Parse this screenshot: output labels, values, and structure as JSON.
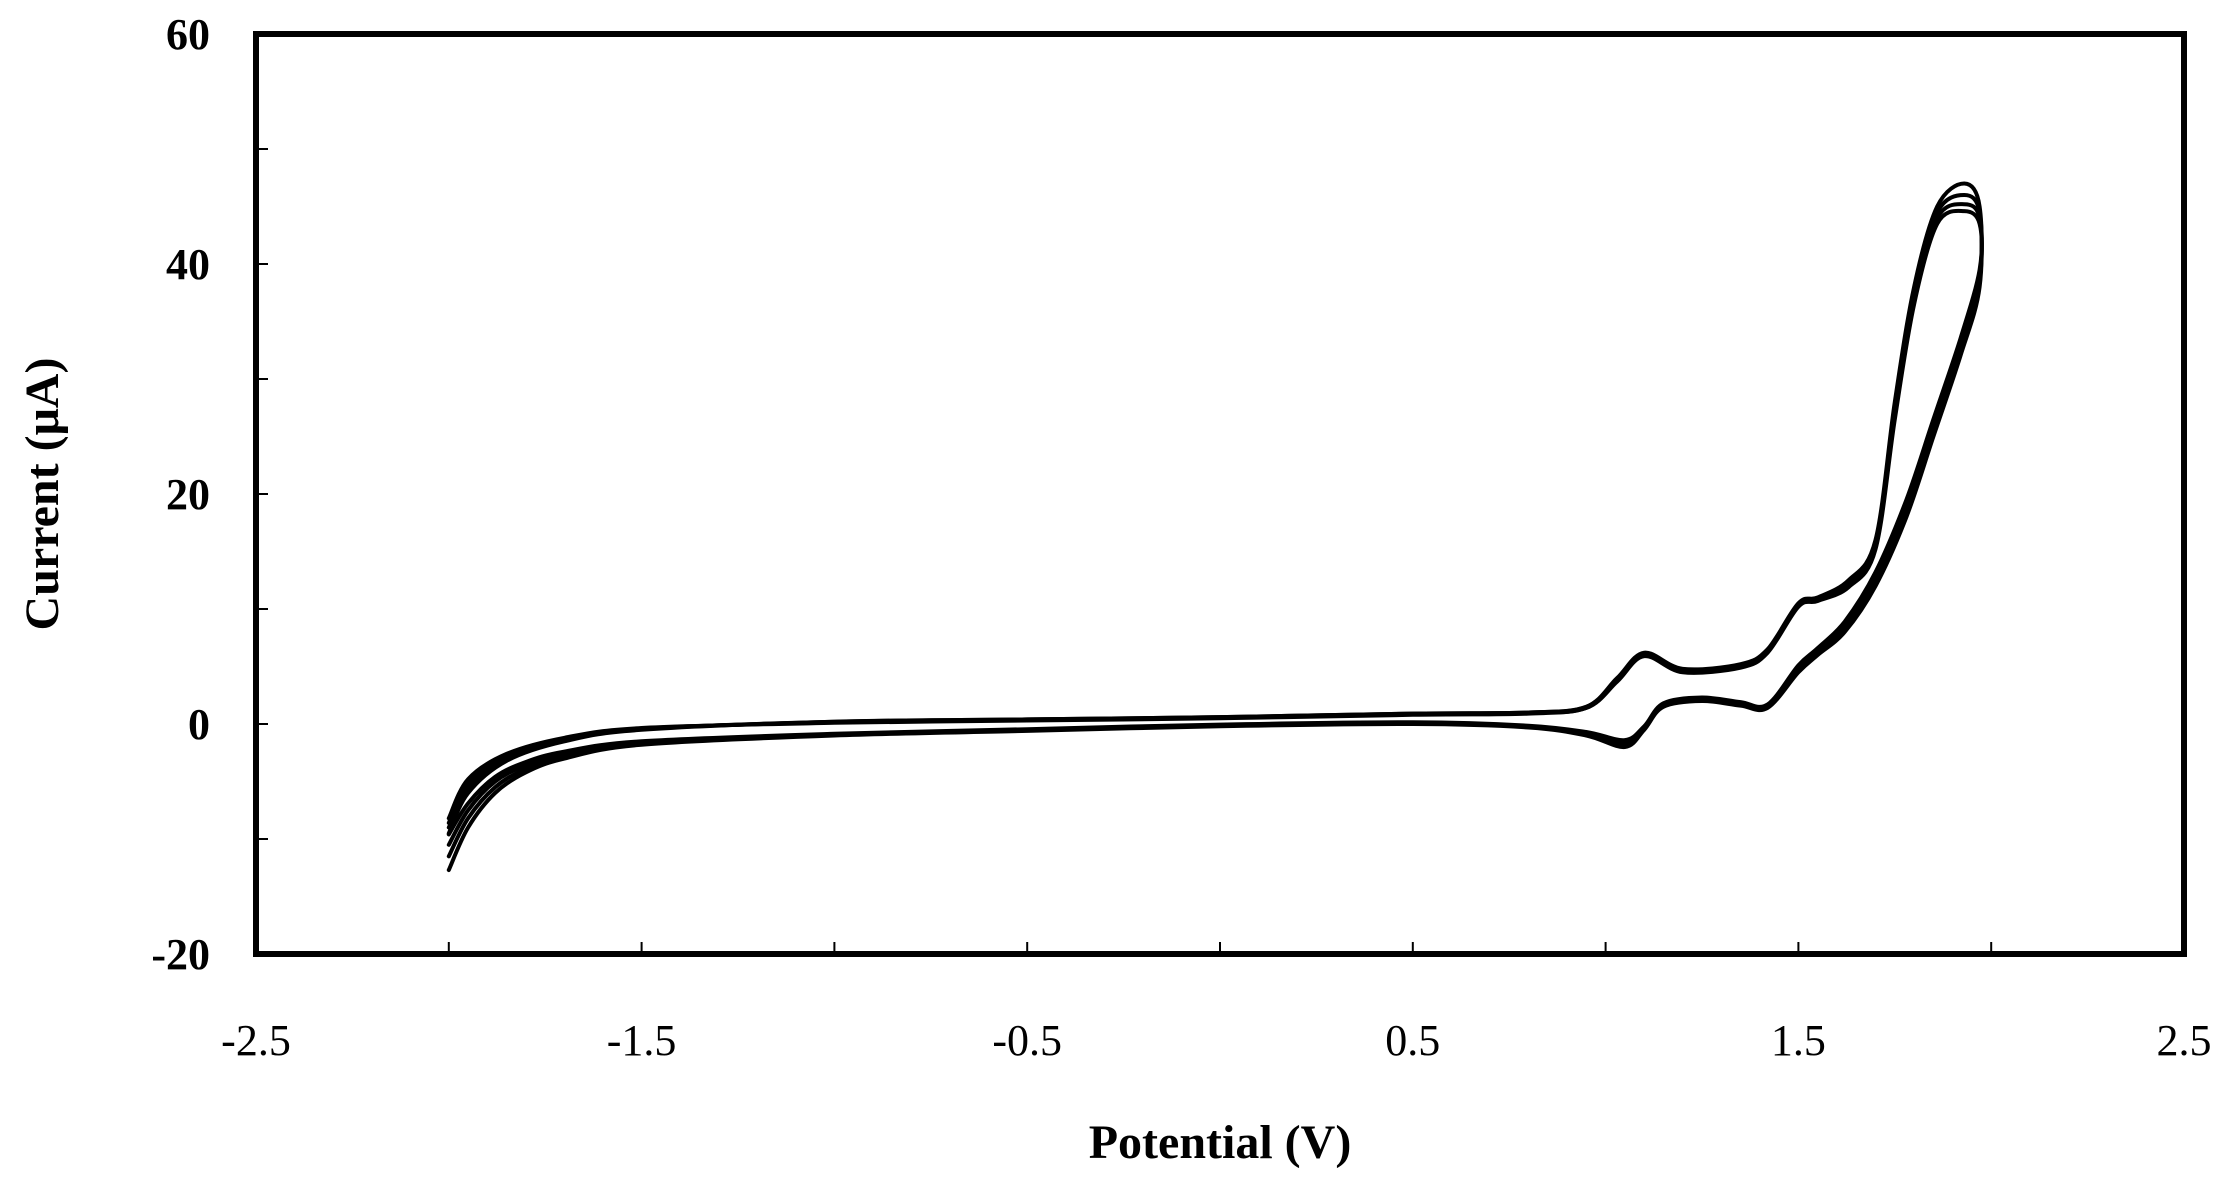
{
  "chart_data": {
    "type": "line",
    "title": "",
    "xlabel": "Potential (V)",
    "ylabel": "Current (μA)",
    "xlim": [
      -2.5,
      2.5
    ],
    "ylim": [
      -20,
      60
    ],
    "xticks": [
      "-2.5",
      "-1.5",
      "-0.5",
      "0.5",
      "1.5",
      "2.5"
    ],
    "xtick_values": [
      -2.5,
      -2.0,
      -1.5,
      -1.0,
      -0.5,
      0.0,
      0.5,
      1.0,
      1.5,
      2.0,
      2.5
    ],
    "xtick_labels": [
      "-2.5",
      "",
      "-1.5",
      "",
      "-0.5",
      "",
      "0.5",
      "",
      "1.5",
      "",
      "2.5"
    ],
    "ytick_values": [
      -20,
      -10,
      0,
      10,
      20,
      30,
      40,
      50,
      60
    ],
    "ytick_labels": [
      "-20",
      "",
      "0",
      "",
      "20",
      "",
      "40",
      "",
      "60"
    ],
    "grid": false,
    "legend": "none",
    "color": "#000000",
    "series": [
      {
        "x": [
          -2.0,
          -1.95,
          -1.88,
          -1.8,
          -1.7,
          -1.5,
          -1.0,
          -0.5,
          0.0,
          0.5,
          0.8,
          0.95,
          1.05,
          1.1,
          1.15,
          1.25,
          1.35,
          1.42,
          1.5,
          1.55,
          1.62,
          1.7,
          1.78,
          1.85,
          1.92,
          1.97,
          1.97,
          1.93,
          1.86,
          1.8,
          1.75,
          1.7,
          1.63,
          1.55,
          1.5,
          1.42,
          1.35,
          1.2,
          1.1,
          1.03,
          0.95,
          0.8,
          0.5,
          0.0,
          -0.5,
          -1.0,
          -1.5,
          -1.7,
          -1.85,
          -1.95,
          -2.0
        ],
        "y": [
          -12.7,
          -9.0,
          -6.0,
          -4.2,
          -3.0,
          -1.8,
          -1.0,
          -0.6,
          -0.2,
          0.0,
          -0.3,
          -1.0,
          -2.0,
          -0.5,
          1.5,
          2.0,
          1.6,
          1.4,
          4.5,
          6.0,
          8.0,
          12.0,
          18.0,
          25.0,
          32.0,
          38.0,
          45.0,
          47.0,
          45.0,
          38.0,
          28.0,
          16.0,
          12.5,
          11.0,
          10.5,
          6.5,
          5.2,
          4.8,
          6.2,
          4.0,
          1.5,
          1.0,
          0.9,
          0.6,
          0.4,
          0.2,
          -0.5,
          -1.5,
          -3.2,
          -6.0,
          -9.5
        ]
      },
      {
        "x": [
          -2.0,
          -1.95,
          -1.88,
          -1.8,
          -1.7,
          -1.5,
          -1.0,
          -0.5,
          0.0,
          0.5,
          0.8,
          0.95,
          1.05,
          1.1,
          1.15,
          1.25,
          1.35,
          1.42,
          1.5,
          1.55,
          1.62,
          1.7,
          1.78,
          1.85,
          1.92,
          1.97,
          1.97,
          1.93,
          1.86,
          1.8,
          1.75,
          1.7,
          1.63,
          1.55,
          1.5,
          1.42,
          1.35,
          1.2,
          1.1,
          1.03,
          0.95,
          0.8,
          0.5,
          0.0,
          -0.5,
          -1.0,
          -1.5,
          -1.7,
          -1.85,
          -1.95,
          -2.0
        ],
        "y": [
          -11.5,
          -8.2,
          -5.5,
          -3.9,
          -2.8,
          -1.7,
          -0.95,
          -0.55,
          -0.15,
          0.05,
          -0.25,
          -0.9,
          -1.8,
          -0.4,
          1.6,
          2.1,
          1.7,
          1.5,
          4.7,
          6.2,
          8.3,
          12.4,
          18.5,
          25.5,
          32.5,
          38.5,
          44.5,
          46.0,
          44.5,
          37.5,
          27.5,
          15.8,
          12.3,
          10.9,
          10.4,
          6.4,
          5.1,
          4.7,
          6.1,
          3.9,
          1.5,
          1.0,
          0.9,
          0.6,
          0.4,
          0.2,
          -0.45,
          -1.4,
          -3.0,
          -5.6,
          -9.0
        ]
      },
      {
        "x": [
          -2.0,
          -1.95,
          -1.88,
          -1.8,
          -1.7,
          -1.5,
          -1.0,
          -0.5,
          0.0,
          0.5,
          0.8,
          0.95,
          1.05,
          1.1,
          1.15,
          1.25,
          1.35,
          1.42,
          1.5,
          1.55,
          1.62,
          1.7,
          1.78,
          1.85,
          1.92,
          1.97,
          1.97,
          1.93,
          1.86,
          1.8,
          1.75,
          1.7,
          1.63,
          1.55,
          1.5,
          1.42,
          1.35,
          1.2,
          1.1,
          1.03,
          0.95,
          0.8,
          0.5,
          0.0,
          -0.5,
          -1.0,
          -1.5,
          -1.7,
          -1.85,
          -1.95,
          -2.0
        ],
        "y": [
          -10.5,
          -7.5,
          -5.0,
          -3.6,
          -2.6,
          -1.6,
          -0.9,
          -0.5,
          -0.1,
          0.1,
          -0.2,
          -0.8,
          -1.6,
          -0.3,
          1.7,
          2.2,
          1.8,
          1.6,
          4.9,
          6.4,
          8.6,
          12.8,
          19.0,
          26.0,
          33.0,
          39.0,
          44.0,
          45.2,
          44.0,
          37.0,
          27.0,
          15.5,
          12.1,
          10.8,
          10.3,
          6.3,
          5.0,
          4.6,
          6.0,
          3.8,
          1.4,
          0.95,
          0.85,
          0.55,
          0.35,
          0.15,
          -0.4,
          -1.3,
          -2.8,
          -5.2,
          -8.6
        ]
      },
      {
        "x": [
          -2.0,
          -1.95,
          -1.88,
          -1.8,
          -1.7,
          -1.5,
          -1.0,
          -0.5,
          0.0,
          0.5,
          0.8,
          0.95,
          1.05,
          1.1,
          1.15,
          1.25,
          1.35,
          1.42,
          1.5,
          1.55,
          1.62,
          1.7,
          1.78,
          1.85,
          1.92,
          1.97,
          1.97,
          1.93,
          1.86,
          1.8,
          1.75,
          1.7,
          1.63,
          1.55,
          1.5,
          1.42,
          1.35,
          1.2,
          1.1,
          1.03,
          0.95,
          0.8,
          0.5,
          0.0,
          -0.5,
          -1.0,
          -1.5,
          -1.7,
          -1.85,
          -1.95,
          -2.0
        ],
        "y": [
          -9.6,
          -6.9,
          -4.6,
          -3.3,
          -2.4,
          -1.5,
          -0.85,
          -0.45,
          -0.05,
          0.15,
          -0.15,
          -0.7,
          -1.4,
          -0.2,
          1.8,
          2.3,
          1.9,
          1.7,
          5.1,
          6.6,
          8.9,
          13.2,
          19.5,
          26.5,
          33.5,
          39.5,
          43.5,
          44.6,
          43.5,
          36.5,
          26.5,
          15.2,
          11.9,
          10.7,
          10.2,
          6.2,
          4.9,
          4.5,
          5.9,
          3.7,
          1.4,
          0.9,
          0.8,
          0.5,
          0.3,
          0.1,
          -0.35,
          -1.2,
          -2.6,
          -4.8,
          -8.2
        ]
      }
    ]
  }
}
